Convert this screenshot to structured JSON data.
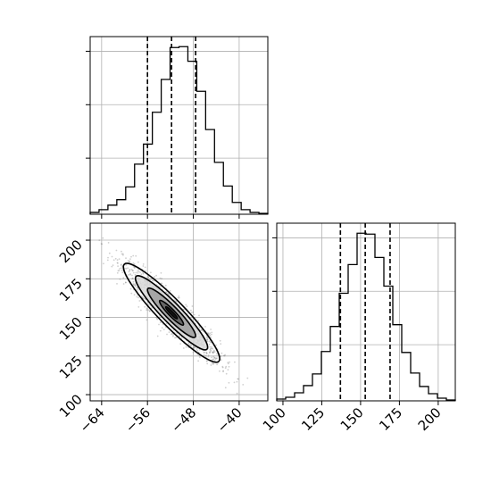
{
  "chart_data": [
    {
      "type": "histogram",
      "panel": "top-left",
      "parameter_index": 0,
      "x_ticks": [
        -64,
        -56,
        -48,
        -40
      ],
      "xlim": [
        -66,
        -35
      ],
      "bin_edges": [
        -66.0,
        -64.45,
        -62.9,
        -61.35,
        -59.8,
        -58.25,
        -56.7,
        -55.15,
        -53.6,
        -52.05,
        -50.5,
        -48.95,
        -47.4,
        -45.85,
        -44.3,
        -42.75,
        -41.2,
        -39.65,
        -38.1,
        -36.55,
        -35.0
      ],
      "counts": [
        2,
        5,
        10,
        16,
        30,
        55,
        77,
        112,
        148,
        183,
        184,
        168,
        135,
        93,
        57,
        31,
        13,
        5,
        2,
        1
      ],
      "quantiles": [
        -56.0,
        -51.8,
        -47.6
      ],
      "grid": true
    },
    {
      "type": "scatter-density",
      "panel": "bottom-left",
      "x_ticks": [
        -64,
        -56,
        -48,
        -40
      ],
      "y_ticks": [
        100,
        125,
        150,
        175,
        200
      ],
      "xlim": [
        -66,
        -35
      ],
      "ylim": [
        96,
        211
      ],
      "mean": [
        -51.8,
        153
      ],
      "std": [
        4.2,
        16
      ],
      "correlation": -0.93,
      "contour_levels_sigma": [
        0.5,
        1.0,
        1.5,
        2.0
      ],
      "grid": true
    },
    {
      "type": "histogram",
      "panel": "bottom-right",
      "parameter_index": 1,
      "x_ticks": [
        100,
        125,
        150,
        175,
        200
      ],
      "xlim": [
        96,
        211
      ],
      "bin_edges": [
        96.0,
        101.75,
        107.5,
        113.25,
        119.0,
        124.75,
        130.5,
        136.25,
        142.0,
        147.75,
        153.5,
        159.25,
        165.0,
        170.75,
        176.5,
        182.25,
        188.0,
        193.75,
        199.5,
        205.25,
        211.0
      ],
      "counts": [
        2,
        4,
        9,
        17,
        30,
        55,
        83,
        120,
        152,
        187,
        186,
        160,
        128,
        85,
        54,
        31,
        16,
        8,
        3,
        1
      ],
      "quantiles": [
        137,
        153,
        169
      ],
      "grid": true
    }
  ]
}
